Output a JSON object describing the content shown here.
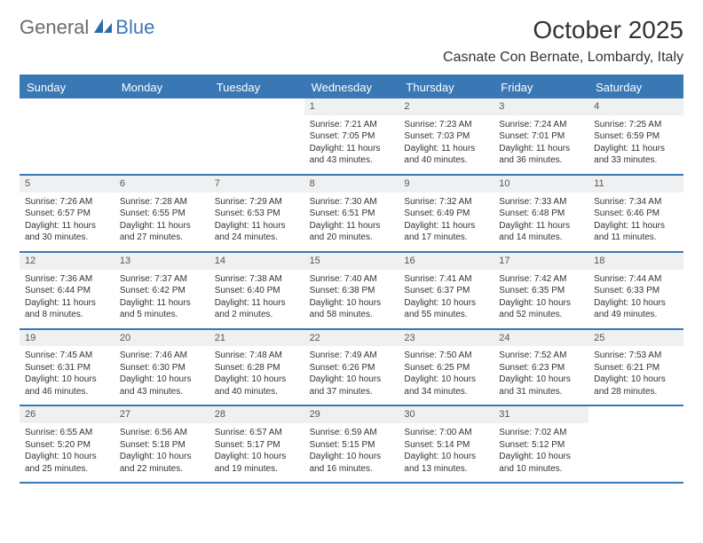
{
  "logo": {
    "text_general": "General",
    "text_blue": "Blue"
  },
  "title": "October 2025",
  "location": "Casnate Con Bernate, Lombardy, Italy",
  "colors": {
    "header_bg": "#3a78b5",
    "header_text": "#ffffff",
    "daynum_bg": "#eef0f2",
    "border": "#3a78b5",
    "text": "#333333",
    "logo_gray": "#6b6b6b",
    "logo_blue": "#3a78b5"
  },
  "day_names": [
    "Sunday",
    "Monday",
    "Tuesday",
    "Wednesday",
    "Thursday",
    "Friday",
    "Saturday"
  ],
  "weeks": [
    [
      {
        "n": "",
        "sr": "",
        "ss": "",
        "dl": ""
      },
      {
        "n": "",
        "sr": "",
        "ss": "",
        "dl": ""
      },
      {
        "n": "",
        "sr": "",
        "ss": "",
        "dl": ""
      },
      {
        "n": "1",
        "sr": "Sunrise: 7:21 AM",
        "ss": "Sunset: 7:05 PM",
        "dl": "Daylight: 11 hours and 43 minutes."
      },
      {
        "n": "2",
        "sr": "Sunrise: 7:23 AM",
        "ss": "Sunset: 7:03 PM",
        "dl": "Daylight: 11 hours and 40 minutes."
      },
      {
        "n": "3",
        "sr": "Sunrise: 7:24 AM",
        "ss": "Sunset: 7:01 PM",
        "dl": "Daylight: 11 hours and 36 minutes."
      },
      {
        "n": "4",
        "sr": "Sunrise: 7:25 AM",
        "ss": "Sunset: 6:59 PM",
        "dl": "Daylight: 11 hours and 33 minutes."
      }
    ],
    [
      {
        "n": "5",
        "sr": "Sunrise: 7:26 AM",
        "ss": "Sunset: 6:57 PM",
        "dl": "Daylight: 11 hours and 30 minutes."
      },
      {
        "n": "6",
        "sr": "Sunrise: 7:28 AM",
        "ss": "Sunset: 6:55 PM",
        "dl": "Daylight: 11 hours and 27 minutes."
      },
      {
        "n": "7",
        "sr": "Sunrise: 7:29 AM",
        "ss": "Sunset: 6:53 PM",
        "dl": "Daylight: 11 hours and 24 minutes."
      },
      {
        "n": "8",
        "sr": "Sunrise: 7:30 AM",
        "ss": "Sunset: 6:51 PM",
        "dl": "Daylight: 11 hours and 20 minutes."
      },
      {
        "n": "9",
        "sr": "Sunrise: 7:32 AM",
        "ss": "Sunset: 6:49 PM",
        "dl": "Daylight: 11 hours and 17 minutes."
      },
      {
        "n": "10",
        "sr": "Sunrise: 7:33 AM",
        "ss": "Sunset: 6:48 PM",
        "dl": "Daylight: 11 hours and 14 minutes."
      },
      {
        "n": "11",
        "sr": "Sunrise: 7:34 AM",
        "ss": "Sunset: 6:46 PM",
        "dl": "Daylight: 11 hours and 11 minutes."
      }
    ],
    [
      {
        "n": "12",
        "sr": "Sunrise: 7:36 AM",
        "ss": "Sunset: 6:44 PM",
        "dl": "Daylight: 11 hours and 8 minutes."
      },
      {
        "n": "13",
        "sr": "Sunrise: 7:37 AM",
        "ss": "Sunset: 6:42 PM",
        "dl": "Daylight: 11 hours and 5 minutes."
      },
      {
        "n": "14",
        "sr": "Sunrise: 7:38 AM",
        "ss": "Sunset: 6:40 PM",
        "dl": "Daylight: 11 hours and 2 minutes."
      },
      {
        "n": "15",
        "sr": "Sunrise: 7:40 AM",
        "ss": "Sunset: 6:38 PM",
        "dl": "Daylight: 10 hours and 58 minutes."
      },
      {
        "n": "16",
        "sr": "Sunrise: 7:41 AM",
        "ss": "Sunset: 6:37 PM",
        "dl": "Daylight: 10 hours and 55 minutes."
      },
      {
        "n": "17",
        "sr": "Sunrise: 7:42 AM",
        "ss": "Sunset: 6:35 PM",
        "dl": "Daylight: 10 hours and 52 minutes."
      },
      {
        "n": "18",
        "sr": "Sunrise: 7:44 AM",
        "ss": "Sunset: 6:33 PM",
        "dl": "Daylight: 10 hours and 49 minutes."
      }
    ],
    [
      {
        "n": "19",
        "sr": "Sunrise: 7:45 AM",
        "ss": "Sunset: 6:31 PM",
        "dl": "Daylight: 10 hours and 46 minutes."
      },
      {
        "n": "20",
        "sr": "Sunrise: 7:46 AM",
        "ss": "Sunset: 6:30 PM",
        "dl": "Daylight: 10 hours and 43 minutes."
      },
      {
        "n": "21",
        "sr": "Sunrise: 7:48 AM",
        "ss": "Sunset: 6:28 PM",
        "dl": "Daylight: 10 hours and 40 minutes."
      },
      {
        "n": "22",
        "sr": "Sunrise: 7:49 AM",
        "ss": "Sunset: 6:26 PM",
        "dl": "Daylight: 10 hours and 37 minutes."
      },
      {
        "n": "23",
        "sr": "Sunrise: 7:50 AM",
        "ss": "Sunset: 6:25 PM",
        "dl": "Daylight: 10 hours and 34 minutes."
      },
      {
        "n": "24",
        "sr": "Sunrise: 7:52 AM",
        "ss": "Sunset: 6:23 PM",
        "dl": "Daylight: 10 hours and 31 minutes."
      },
      {
        "n": "25",
        "sr": "Sunrise: 7:53 AM",
        "ss": "Sunset: 6:21 PM",
        "dl": "Daylight: 10 hours and 28 minutes."
      }
    ],
    [
      {
        "n": "26",
        "sr": "Sunrise: 6:55 AM",
        "ss": "Sunset: 5:20 PM",
        "dl": "Daylight: 10 hours and 25 minutes."
      },
      {
        "n": "27",
        "sr": "Sunrise: 6:56 AM",
        "ss": "Sunset: 5:18 PM",
        "dl": "Daylight: 10 hours and 22 minutes."
      },
      {
        "n": "28",
        "sr": "Sunrise: 6:57 AM",
        "ss": "Sunset: 5:17 PM",
        "dl": "Daylight: 10 hours and 19 minutes."
      },
      {
        "n": "29",
        "sr": "Sunrise: 6:59 AM",
        "ss": "Sunset: 5:15 PM",
        "dl": "Daylight: 10 hours and 16 minutes."
      },
      {
        "n": "30",
        "sr": "Sunrise: 7:00 AM",
        "ss": "Sunset: 5:14 PM",
        "dl": "Daylight: 10 hours and 13 minutes."
      },
      {
        "n": "31",
        "sr": "Sunrise: 7:02 AM",
        "ss": "Sunset: 5:12 PM",
        "dl": "Daylight: 10 hours and 10 minutes."
      },
      {
        "n": "",
        "sr": "",
        "ss": "",
        "dl": ""
      }
    ]
  ]
}
